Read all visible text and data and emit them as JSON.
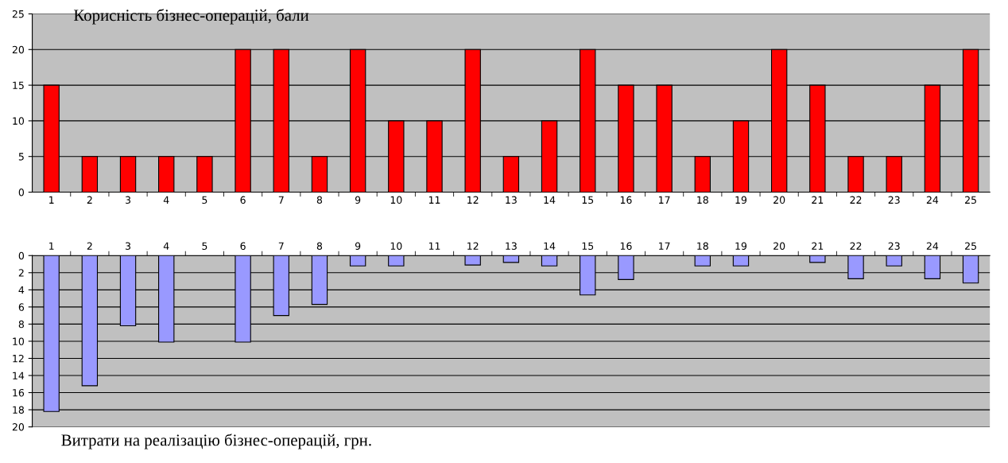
{
  "chart_data": [
    {
      "type": "bar",
      "title": "Корисність бізнес-операцій, бали",
      "categories": [
        "1",
        "2",
        "3",
        "4",
        "5",
        "6",
        "7",
        "8",
        "9",
        "10",
        "11",
        "12",
        "13",
        "14",
        "15",
        "16",
        "17",
        "18",
        "19",
        "20",
        "21",
        "22",
        "23",
        "24",
        "25"
      ],
      "series": [
        {
          "color": "#ff0000",
          "values": [
            15,
            5,
            5,
            5,
            5,
            20,
            20,
            5,
            20,
            10,
            10,
            20,
            5,
            10,
            20,
            15,
            15,
            5,
            10,
            20,
            15,
            5,
            5,
            15,
            20
          ]
        }
      ],
      "ylim": [
        0,
        25
      ],
      "yticks": [
        0,
        5,
        10,
        15,
        20,
        25
      ],
      "grid": "y"
    },
    {
      "type": "bar",
      "title": "Витрати на реалізацію бізнес-операцій, грн.",
      "categories": [
        "1",
        "2",
        "3",
        "4",
        "5",
        "6",
        "7",
        "8",
        "9",
        "10",
        "11",
        "12",
        "13",
        "14",
        "15",
        "16",
        "17",
        "18",
        "19",
        "20",
        "21",
        "22",
        "23",
        "24",
        "25"
      ],
      "series": [
        {
          "color": "#9999ff",
          "values": [
            18.2,
            15.2,
            8.2,
            10.1,
            null,
            10.1,
            7,
            5.7,
            1.2,
            1.2,
            null,
            1.1,
            0.8,
            1.2,
            4.6,
            2.8,
            null,
            1.2,
            1.2,
            null,
            0.8,
            2.7,
            1.2,
            2.7,
            3.2
          ]
        }
      ],
      "ylim": [
        20,
        0
      ],
      "yticks": [
        0,
        2,
        4,
        6,
        8,
        10,
        12,
        14,
        16,
        18,
        20
      ],
      "grid": "y"
    }
  ]
}
